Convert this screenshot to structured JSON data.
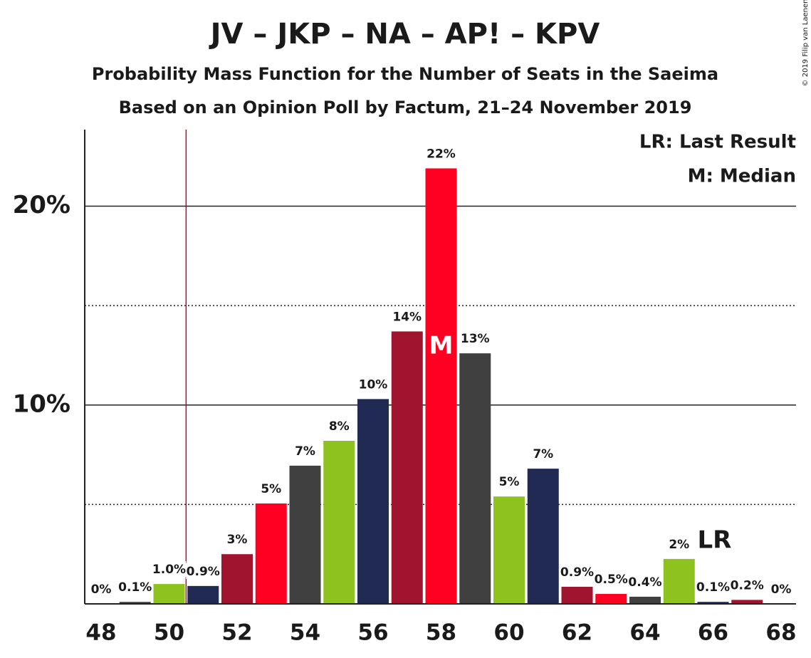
{
  "chart_data": {
    "type": "bar",
    "title": "JV – JKP – NA – AP! – KPV",
    "subtitle": "Probability Mass Function for the Number of Seats in the Saeima",
    "subtitle2": "Based on an Opinion Poll by Factum, 21–24 November 2019",
    "copyright": "© 2019 Filip van Laenen",
    "legend_lines": [
      "LR: Last Result",
      "M: Median"
    ],
    "categories": [
      48,
      49,
      50,
      51,
      52,
      53,
      54,
      55,
      56,
      57,
      58,
      59,
      60,
      61,
      62,
      63,
      64,
      65,
      66,
      67,
      68
    ],
    "values": [
      0,
      0.1,
      1.0,
      0.9,
      2.5,
      5.05,
      6.95,
      8.2,
      10.3,
      13.7,
      21.9,
      12.6,
      5.4,
      6.8,
      0.86,
      0.5,
      0.36,
      2.26,
      0.1,
      0.2,
      0
    ],
    "value_labels": [
      "0%",
      "0.1%",
      "1.0%",
      "0.9%",
      "3%",
      "5%",
      "7%",
      "8%",
      "10%",
      "14%",
      "22%",
      "13%",
      "5%",
      "7%",
      "0.9%",
      "0.5%",
      "0.4%",
      "2%",
      "0.1%",
      "0.2%",
      "0%"
    ],
    "colors": [
      "#ff0022",
      "#404040",
      "#8dc21f",
      "#212a53",
      "#a0142f",
      "#ff0022",
      "#404040",
      "#8dc21f",
      "#212a53",
      "#a0142f",
      "#ff0022",
      "#404040",
      "#8dc21f",
      "#212a53",
      "#a0142f",
      "#ff0022",
      "#404040",
      "#8dc21f",
      "#212a53",
      "#a0142f",
      "#ff0022"
    ],
    "xticks": [
      48,
      50,
      52,
      54,
      56,
      58,
      60,
      62,
      64,
      66,
      68
    ],
    "xlim": [
      47.5,
      68.5
    ],
    "ylim": [
      0,
      23.85
    ],
    "yticks": [
      {
        "value": 10,
        "label": "10%"
      },
      {
        "value": 20,
        "label": "20%"
      }
    ],
    "minor_yticks": [
      5,
      15
    ],
    "majority": 51,
    "median": 58,
    "median_label": "M",
    "last_result": 66,
    "last_result_label": "LR"
  }
}
